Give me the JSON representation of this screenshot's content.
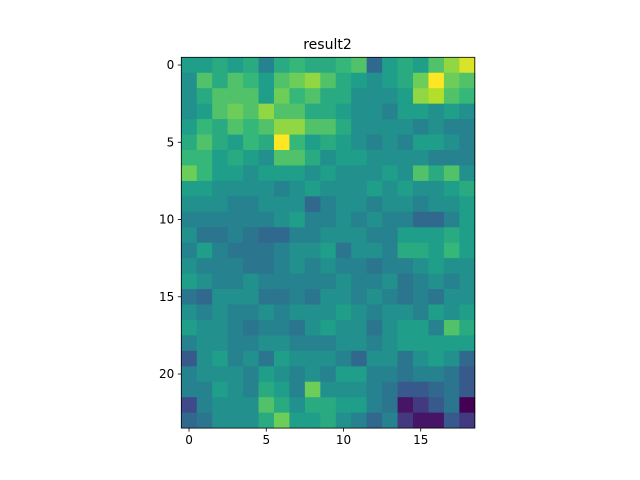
{
  "chart_data": {
    "type": "heatmap",
    "title": "result2",
    "cmap": "viridis",
    "xlim": [
      -0.5,
      18.5
    ],
    "ylim": [
      23.5,
      -0.5
    ],
    "xticks": [
      0,
      5,
      10,
      15
    ],
    "yticks": [
      0,
      5,
      10,
      15,
      20
    ],
    "z": [
      [
        0.55,
        0.55,
        0.6,
        0.55,
        0.6,
        0.45,
        0.6,
        0.65,
        0.6,
        0.6,
        0.65,
        0.7,
        0.35,
        0.55,
        0.6,
        0.55,
        0.7,
        0.8,
        0.9
      ],
      [
        0.5,
        0.7,
        0.6,
        0.7,
        0.65,
        0.55,
        0.7,
        0.75,
        0.8,
        0.7,
        0.6,
        0.55,
        0.5,
        0.55,
        0.6,
        0.75,
        0.95,
        0.75,
        0.7
      ],
      [
        0.5,
        0.6,
        0.7,
        0.7,
        0.7,
        0.55,
        0.75,
        0.65,
        0.7,
        0.6,
        0.6,
        0.5,
        0.5,
        0.5,
        0.55,
        0.8,
        0.85,
        0.7,
        0.65
      ],
      [
        0.5,
        0.55,
        0.7,
        0.75,
        0.7,
        0.8,
        0.7,
        0.7,
        0.6,
        0.6,
        0.55,
        0.5,
        0.5,
        0.45,
        0.55,
        0.55,
        0.5,
        0.55,
        0.5
      ],
      [
        0.55,
        0.65,
        0.6,
        0.7,
        0.65,
        0.7,
        0.8,
        0.8,
        0.7,
        0.7,
        0.6,
        0.5,
        0.5,
        0.5,
        0.5,
        0.45,
        0.5,
        0.45,
        0.45
      ],
      [
        0.6,
        0.7,
        0.6,
        0.55,
        0.65,
        0.6,
        0.95,
        0.65,
        0.55,
        0.6,
        0.55,
        0.5,
        0.45,
        0.5,
        0.45,
        0.55,
        0.55,
        0.5,
        0.45
      ],
      [
        0.65,
        0.65,
        0.55,
        0.6,
        0.55,
        0.5,
        0.7,
        0.7,
        0.6,
        0.5,
        0.55,
        0.55,
        0.5,
        0.5,
        0.5,
        0.5,
        0.45,
        0.45,
        0.45
      ],
      [
        0.75,
        0.65,
        0.55,
        0.55,
        0.5,
        0.55,
        0.55,
        0.55,
        0.5,
        0.55,
        0.5,
        0.5,
        0.5,
        0.55,
        0.5,
        0.7,
        0.6,
        0.7,
        0.5
      ],
      [
        0.55,
        0.55,
        0.5,
        0.5,
        0.5,
        0.5,
        0.45,
        0.5,
        0.55,
        0.5,
        0.5,
        0.5,
        0.55,
        0.5,
        0.55,
        0.5,
        0.5,
        0.55,
        0.6
      ],
      [
        0.5,
        0.5,
        0.5,
        0.45,
        0.45,
        0.5,
        0.5,
        0.5,
        0.35,
        0.45,
        0.5,
        0.5,
        0.45,
        0.5,
        0.5,
        0.45,
        0.5,
        0.5,
        0.55
      ],
      [
        0.45,
        0.45,
        0.45,
        0.45,
        0.45,
        0.45,
        0.5,
        0.55,
        0.45,
        0.45,
        0.5,
        0.45,
        0.5,
        0.45,
        0.45,
        0.35,
        0.35,
        0.45,
        0.55
      ],
      [
        0.5,
        0.4,
        0.4,
        0.45,
        0.4,
        0.35,
        0.35,
        0.45,
        0.45,
        0.5,
        0.5,
        0.5,
        0.45,
        0.45,
        0.55,
        0.55,
        0.55,
        0.6,
        0.55
      ],
      [
        0.45,
        0.55,
        0.45,
        0.4,
        0.4,
        0.4,
        0.45,
        0.5,
        0.5,
        0.55,
        0.4,
        0.5,
        0.5,
        0.45,
        0.6,
        0.6,
        0.55,
        0.65,
        0.55
      ],
      [
        0.5,
        0.45,
        0.45,
        0.45,
        0.4,
        0.4,
        0.45,
        0.5,
        0.45,
        0.5,
        0.45,
        0.45,
        0.4,
        0.45,
        0.45,
        0.5,
        0.55,
        0.5,
        0.5
      ],
      [
        0.55,
        0.5,
        0.45,
        0.45,
        0.5,
        0.45,
        0.45,
        0.45,
        0.45,
        0.45,
        0.5,
        0.45,
        0.45,
        0.5,
        0.4,
        0.45,
        0.5,
        0.45,
        0.5
      ],
      [
        0.4,
        0.35,
        0.5,
        0.5,
        0.5,
        0.4,
        0.4,
        0.45,
        0.4,
        0.5,
        0.5,
        0.45,
        0.5,
        0.45,
        0.4,
        0.45,
        0.4,
        0.5,
        0.5
      ],
      [
        0.5,
        0.45,
        0.5,
        0.45,
        0.45,
        0.5,
        0.45,
        0.5,
        0.5,
        0.5,
        0.55,
        0.5,
        0.45,
        0.5,
        0.5,
        0.45,
        0.55,
        0.5,
        0.55
      ],
      [
        0.55,
        0.5,
        0.5,
        0.45,
        0.4,
        0.45,
        0.45,
        0.4,
        0.5,
        0.55,
        0.5,
        0.5,
        0.4,
        0.5,
        0.55,
        0.55,
        0.45,
        0.7,
        0.6
      ],
      [
        0.45,
        0.5,
        0.5,
        0.45,
        0.45,
        0.5,
        0.5,
        0.45,
        0.45,
        0.45,
        0.5,
        0.5,
        0.45,
        0.5,
        0.55,
        0.55,
        0.55,
        0.55,
        0.55
      ],
      [
        0.3,
        0.5,
        0.55,
        0.45,
        0.5,
        0.4,
        0.55,
        0.5,
        0.5,
        0.5,
        0.45,
        0.35,
        0.5,
        0.5,
        0.4,
        0.5,
        0.55,
        0.5,
        0.35
      ],
      [
        0.45,
        0.5,
        0.5,
        0.5,
        0.45,
        0.55,
        0.5,
        0.45,
        0.5,
        0.45,
        0.55,
        0.55,
        0.45,
        0.45,
        0.4,
        0.45,
        0.45,
        0.4,
        0.3
      ],
      [
        0.45,
        0.45,
        0.55,
        0.5,
        0.45,
        0.6,
        0.55,
        0.45,
        0.75,
        0.5,
        0.5,
        0.5,
        0.45,
        0.4,
        0.3,
        0.3,
        0.35,
        0.4,
        0.3
      ],
      [
        0.25,
        0.45,
        0.5,
        0.5,
        0.5,
        0.7,
        0.6,
        0.5,
        0.6,
        0.6,
        0.55,
        0.55,
        0.45,
        0.4,
        0.1,
        0.2,
        0.3,
        0.4,
        0.05
      ],
      [
        0.35,
        0.4,
        0.5,
        0.5,
        0.5,
        0.6,
        0.75,
        0.55,
        0.55,
        0.6,
        0.5,
        0.45,
        0.35,
        0.45,
        0.2,
        0.1,
        0.1,
        0.3,
        0.2
      ]
    ]
  }
}
